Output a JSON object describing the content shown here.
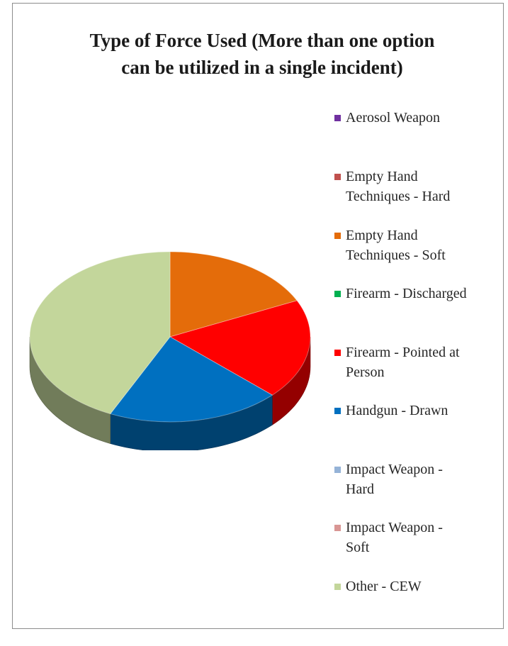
{
  "chart_data": {
    "type": "pie",
    "title": "Type of Force Used (More than one option can be utilized in a single incident)",
    "title_lines": [
      "Type of Force Used (More than one option",
      "can be utilized in a single incident)"
    ],
    "style": "3d",
    "legend_position": "right",
    "series": [
      {
        "name": "Aerosol Weapon",
        "legend_lines": "Aerosol Weapon",
        "value": 0,
        "color": "#7030a0"
      },
      {
        "name": "Empty Hand Techniques - Hard",
        "legend_lines": "Empty Hand\nTechniques - Hard",
        "value": 0,
        "color": "#c0504d"
      },
      {
        "name": "Empty Hand Techniques - Soft",
        "legend_lines": "Empty Hand\nTechniques - Soft",
        "value": 18,
        "color": "#e46c0a"
      },
      {
        "name": "Firearm - Discharged",
        "legend_lines": "Firearm - Discharged",
        "value": 0,
        "color": "#00b050"
      },
      {
        "name": "Firearm - Pointed at Person",
        "legend_lines": "Firearm - Pointed at\nPerson",
        "value": 19,
        "color": "#ff0000"
      },
      {
        "name": "Handgun - Drawn",
        "legend_lines": "Handgun - Drawn",
        "value": 20,
        "color": "#0070c0"
      },
      {
        "name": "Impact Weapon - Hard",
        "legend_lines": "Impact Weapon -\nHard",
        "value": 0,
        "color": "#95b3d7"
      },
      {
        "name": "Impact Weapon - Soft",
        "legend_lines": "Impact Weapon -\nSoft",
        "value": 0,
        "color": "#d99694"
      },
      {
        "name": "Other - CEW",
        "legend_lines": "Other - CEW",
        "value": 43,
        "color": "#c3d69b"
      }
    ]
  }
}
